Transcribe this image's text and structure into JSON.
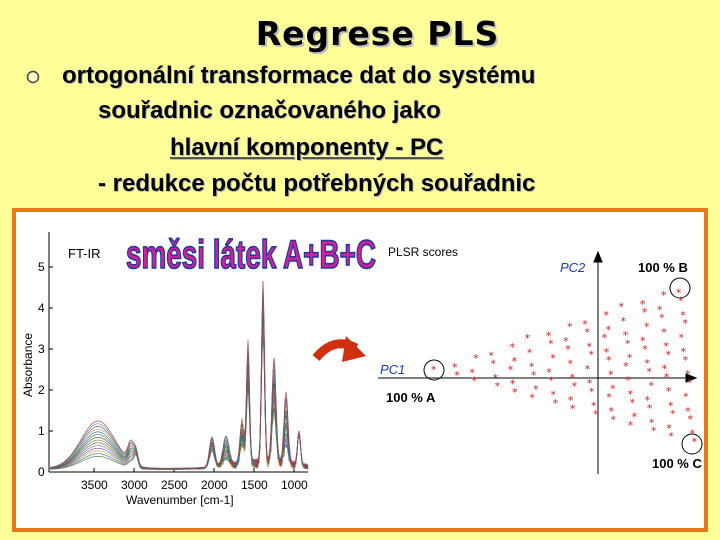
{
  "slide": {
    "title": "Regrese PLS",
    "bullet_line1": "ortogonální transformace dat do systému",
    "bullet_line2": "souřadnic označovaného jako",
    "bullet_line3": "hlavní komponenty - PC",
    "sub_line": "- redukce počtu potřebných souřadnic"
  },
  "figure": {
    "spectrum_label": "FT-IR",
    "mixture_caption": "směsi látek A+B+C",
    "scores_label": "PLSR scores",
    "pc1_label": "PC1",
    "pc2_label": "PC2",
    "corner_a": "100 % A",
    "corner_b": "100 % B",
    "corner_c": "100 % C",
    "y_axis_label": "Absorbance",
    "x_axis_label": "Wavenumber [cm-1]",
    "y_ticks": [
      "0",
      "1",
      "2",
      "3",
      "4",
      "5"
    ],
    "x_ticks": [
      "3500",
      "3000",
      "2500",
      "2000",
      "1500",
      "1000"
    ]
  },
  "colors": {
    "background": "#ffff99",
    "frame": "#e8781a",
    "caption_magenta": "#d0209a",
    "caption_blue": "#1b3a9c",
    "pc_axis_blue": "#1a3fb0",
    "scores_red": "#cc2222"
  }
}
